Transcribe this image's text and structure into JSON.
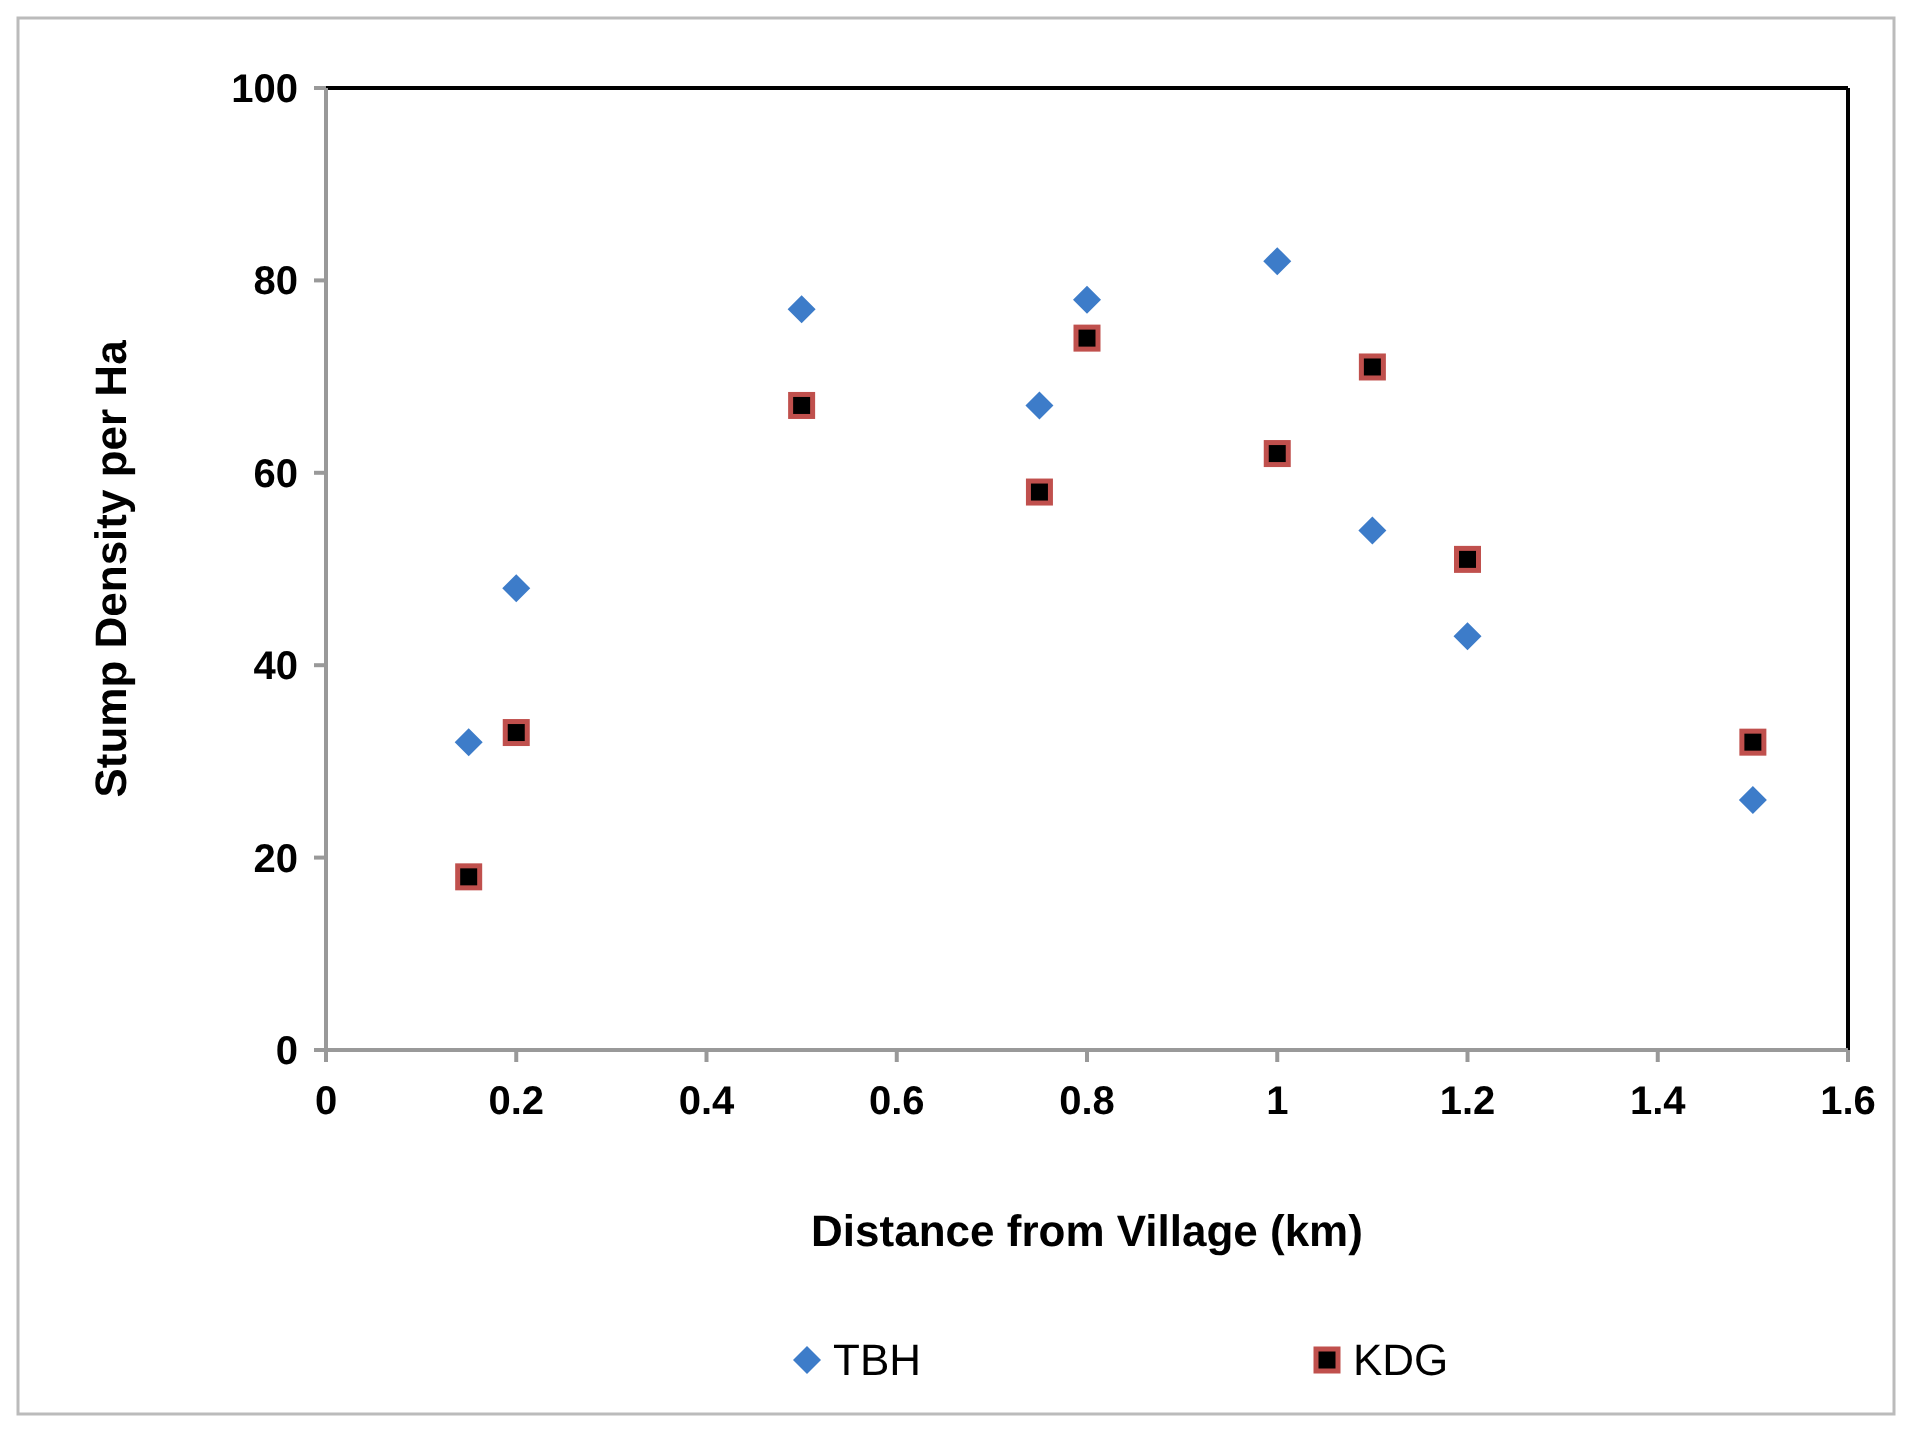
{
  "chart_data": {
    "type": "scatter",
    "xlabel": "Distance from Village (km)",
    "ylabel": "Stump Density per Ha",
    "x": [
      0.15,
      0.2,
      0.5,
      0.75,
      0.8,
      1.0,
      1.1,
      1.2,
      1.5
    ],
    "series": [
      {
        "name": "TBH",
        "color": "#3d7cc9",
        "marker": "diamond",
        "values": [
          32,
          48,
          77,
          67,
          78,
          82,
          54,
          43,
          26
        ]
      },
      {
        "name": "KDG",
        "color": "#c0504d",
        "marker": "square",
        "values": [
          18,
          33,
          67,
          58,
          74,
          62,
          71,
          51,
          32
        ]
      }
    ],
    "xlim": [
      0,
      1.6
    ],
    "xticks": [
      {
        "value": 0,
        "label": "0"
      },
      {
        "value": 0.2,
        "label": "0.2"
      },
      {
        "value": 0.4,
        "label": "0.4"
      },
      {
        "value": 0.6,
        "label": "0.6"
      },
      {
        "value": 0.8,
        "label": "0.8"
      },
      {
        "value": 1,
        "label": "1"
      },
      {
        "value": 1.2,
        "label": "1.2"
      },
      {
        "value": 1.4,
        "label": "1.4"
      },
      {
        "value": 1.6,
        "label": "1.6"
      }
    ],
    "ylim": [
      0,
      100
    ],
    "yticks": [
      0,
      20,
      40,
      60,
      80,
      100
    ],
    "grid": false,
    "legend": "bottom"
  }
}
